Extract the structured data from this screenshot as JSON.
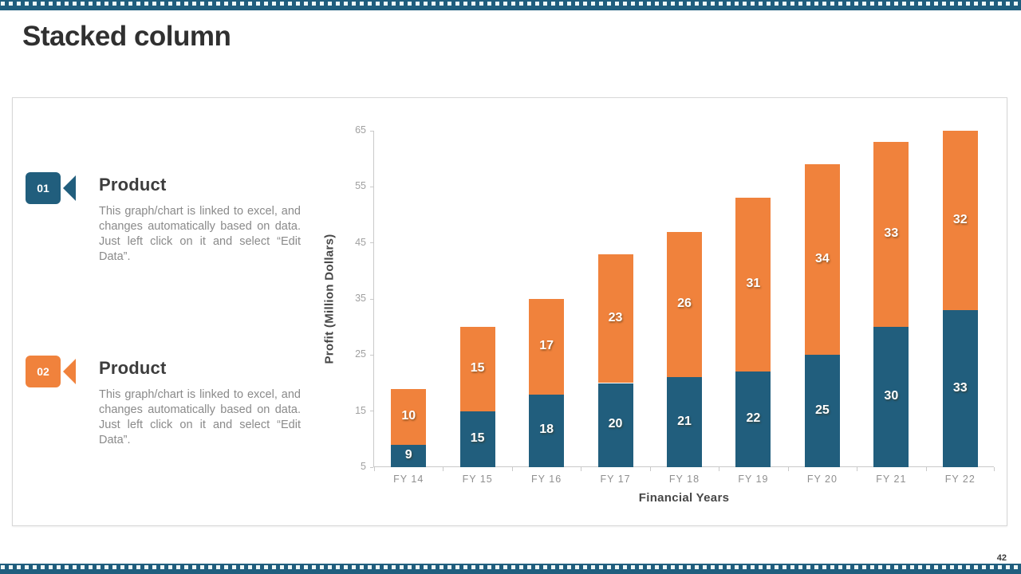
{
  "slide": {
    "title": "Stacked column",
    "page_number": "42"
  },
  "theme": {
    "teal": "#215E7D",
    "orange": "#F0823C",
    "band_color": "#205E7E",
    "box_border": "#D7D7D7",
    "axis_line": "#C9C9C9",
    "tick_text": "#A0A0A0",
    "body_text": "#8A8A8A"
  },
  "products": [
    {
      "number": "01",
      "heading": "Product",
      "body": "This graph/chart is linked to excel, and changes automatically based on data. Just left click on it and select “Edit Data”."
    },
    {
      "number": "02",
      "heading": "Product",
      "body": "This graph/chart is linked to excel, and changes automatically based on data. Just left click on it and select “Edit Data”."
    }
  ],
  "chart_data": {
    "type": "bar",
    "stacked": true,
    "categories": [
      "FY 14",
      "FY 15",
      "FY 16",
      "FY 17",
      "FY 18",
      "FY 19",
      "FY 20",
      "FY 21",
      "FY 22"
    ],
    "series": [
      {
        "name": "bottom-blue-segment",
        "color": "#215E7D",
        "values": [
          9,
          15,
          18,
          20,
          21,
          22,
          25,
          30,
          33
        ]
      },
      {
        "name": "top-orange-segment",
        "color": "#F0823C",
        "values": [
          10,
          15,
          17,
          23,
          26,
          31,
          34,
          33,
          32
        ]
      }
    ],
    "totals": [
      19,
      30,
      35,
      43,
      47,
      53,
      59,
      63,
      65
    ],
    "xlabel": "Financial Years",
    "ylabel": "Profit (Million Dollars)",
    "ylim": [
      5,
      65
    ],
    "ytick_step": 10,
    "yticks": [
      5,
      15,
      25,
      35,
      45,
      55,
      65
    ],
    "grid": false,
    "legend": "none",
    "data_labels": "inside-center-white"
  }
}
